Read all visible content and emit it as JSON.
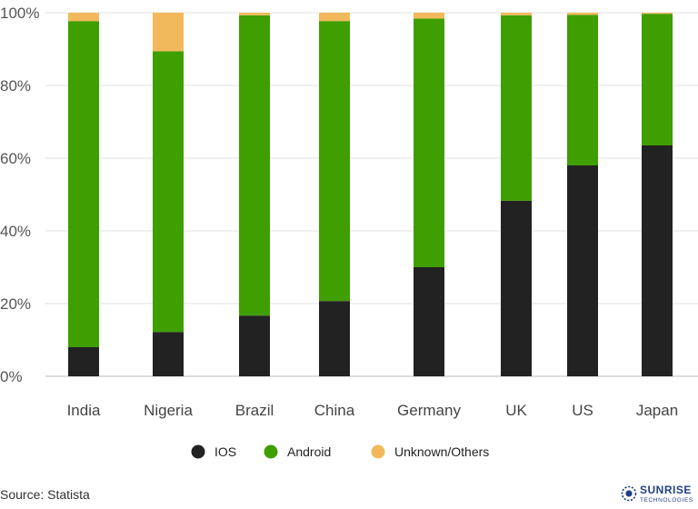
{
  "chart_data": {
    "type": "bar",
    "stacked": true,
    "categories": [
      "India",
      "Nigeria",
      "Brazil",
      "China",
      "Germany",
      "UK",
      "US",
      "Japan"
    ],
    "series": [
      {
        "name": "IOS",
        "color": "#222222",
        "values": [
          8,
          12.2,
          16.7,
          20.7,
          30,
          48.3,
          58,
          63.5
        ]
      },
      {
        "name": "Android",
        "color": "#3f9e00",
        "values": [
          89.7,
          77.2,
          82.6,
          77,
          68.4,
          51,
          41.4,
          36.2
        ]
      },
      {
        "name": "Unknown/Others",
        "color": "#f2b95c",
        "values": [
          2.3,
          10.6,
          0.7,
          2.3,
          1.6,
          0.7,
          0.6,
          0.3
        ]
      }
    ],
    "ylim": [
      0,
      100
    ],
    "yticks": [
      "0%",
      "20%",
      "40%",
      "60%",
      "80%",
      "100%"
    ],
    "grid": true,
    "legend_position": "bottom"
  },
  "source": "Source: Statista",
  "brand": {
    "name": "SUNRISE",
    "tagline": "TECHNOLOGIES"
  }
}
